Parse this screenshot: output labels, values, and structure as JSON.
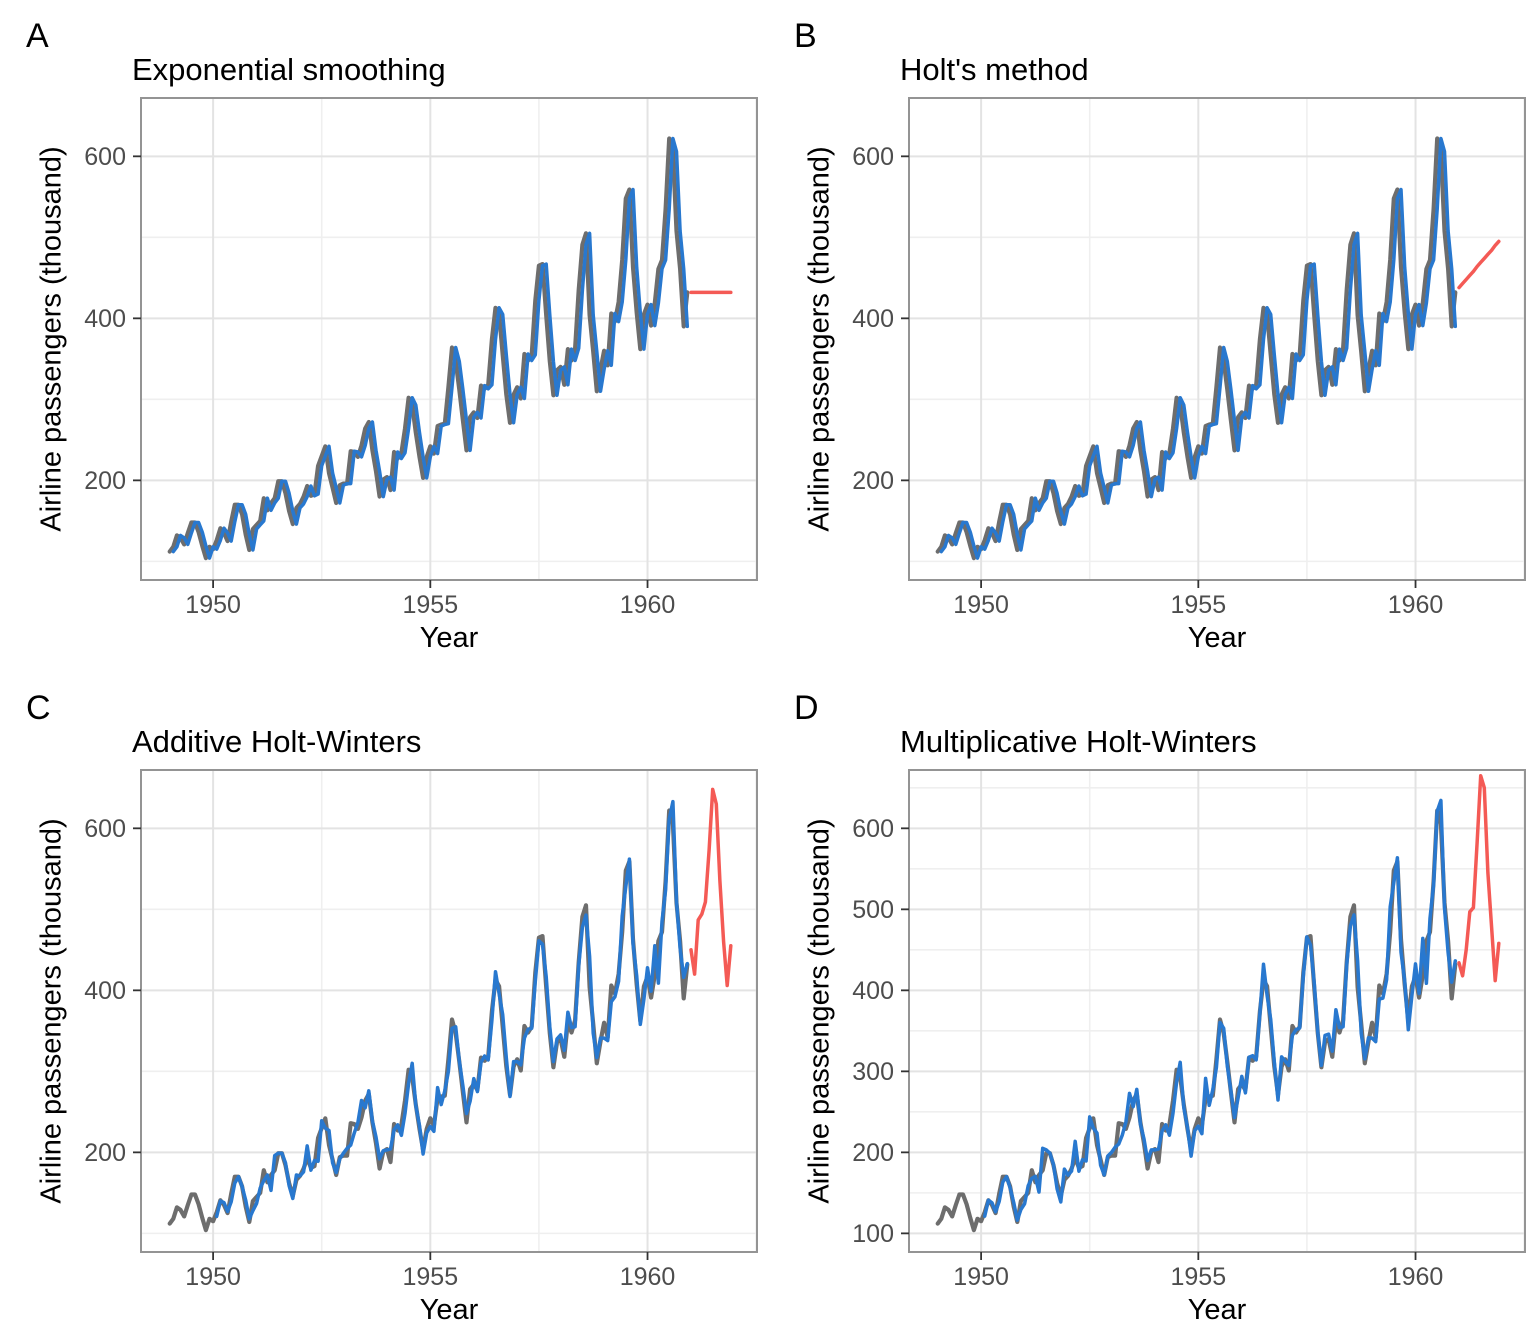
{
  "colors": {
    "observed_line": "#6d6d6d",
    "fitted_line": "#2878cf",
    "forecast_line": "#f45a55",
    "grid_major": "#e3e3e3",
    "grid_minor": "#efefef",
    "panel_border": "#949494",
    "tick_mark": "#333333",
    "tick_label": "#4d4d4d"
  },
  "observed": {
    "name": "Airline passengers, monthly",
    "start_year": 1949,
    "values": [
      112,
      118,
      132,
      129,
      121,
      135,
      148,
      148,
      136,
      119,
      104,
      118,
      115,
      126,
      141,
      135,
      125,
      149,
      170,
      170,
      158,
      133,
      114,
      140,
      145,
      150,
      178,
      163,
      172,
      178,
      199,
      199,
      184,
      162,
      146,
      166,
      171,
      180,
      193,
      181,
      183,
      218,
      230,
      242,
      209,
      191,
      172,
      194,
      196,
      196,
      236,
      235,
      229,
      243,
      264,
      272,
      237,
      211,
      180,
      201,
      204,
      188,
      235,
      227,
      234,
      264,
      302,
      293,
      259,
      229,
      203,
      229,
      242,
      233,
      267,
      269,
      270,
      315,
      364,
      347,
      312,
      274,
      237,
      278,
      284,
      277,
      317,
      313,
      318,
      374,
      413,
      405,
      355,
      306,
      271,
      306,
      315,
      301,
      356,
      348,
      355,
      422,
      465,
      467,
      404,
      347,
      305,
      336,
      340,
      318,
      362,
      348,
      363,
      435,
      491,
      505,
      404,
      359,
      310,
      337,
      360,
      342,
      406,
      396,
      420,
      472,
      548,
      559,
      463,
      407,
      362,
      405,
      417,
      391,
      419,
      461,
      472,
      535,
      622,
      606,
      508,
      461,
      390,
      432
    ]
  },
  "chart_data": [
    {
      "type": "line",
      "panel_label": "A",
      "title": "Exponential smoothing",
      "xlabel": "Year",
      "ylabel": "Airline passengers (thousand)",
      "x_ticks": [
        1950,
        1955,
        1960
      ],
      "x_minor_ticks": [
        1952.5,
        1957.5,
        1962.5
      ],
      "y_ticks": [
        200,
        400,
        600
      ],
      "y_minor_ticks": [
        100,
        300,
        500
      ],
      "xlim": [
        1948.34,
        1962.52
      ],
      "ylim": [
        77,
        672
      ],
      "grid": true,
      "legend": "none",
      "fitted_rule": "lag1",
      "forecast": {
        "start": 1961.0,
        "step_months": 1,
        "values": [
          432,
          432,
          432,
          432,
          432,
          432,
          432,
          432,
          432,
          432,
          432,
          432
        ]
      }
    },
    {
      "type": "line",
      "panel_label": "B",
      "title": "Holt's method",
      "xlabel": "Year",
      "ylabel": "Airline passengers (thousand)",
      "x_ticks": [
        1950,
        1955,
        1960
      ],
      "x_minor_ticks": [
        1952.5,
        1957.5,
        1962.5
      ],
      "y_ticks": [
        200,
        400,
        600
      ],
      "y_minor_ticks": [
        100,
        300,
        500
      ],
      "xlim": [
        1948.34,
        1962.52
      ],
      "ylim": [
        77,
        672
      ],
      "grid": true,
      "legend": "none",
      "fitted_rule": "lag1",
      "forecast": {
        "start": 1961.0,
        "step_months": 1,
        "values": [
          438,
          443,
          448,
          453,
          458,
          464,
          469,
          474,
          479,
          484,
          490,
          495
        ]
      }
    },
    {
      "type": "line",
      "panel_label": "C",
      "title": "Additive Holt-Winters",
      "xlabel": "Year",
      "ylabel": "Airline passengers (thousand)",
      "x_ticks": [
        1950,
        1955,
        1960
      ],
      "x_minor_ticks": [
        1952.5,
        1957.5,
        1962.5
      ],
      "y_ticks": [
        200,
        400,
        600
      ],
      "y_minor_ticks": [
        100,
        300,
        500
      ],
      "xlim": [
        1948.34,
        1962.52
      ],
      "ylim": [
        77,
        672
      ],
      "grid": true,
      "legend": "none",
      "fitted_rule": "seasonal_additive",
      "forecast": {
        "start": 1961.0,
        "step_months": 1,
        "values": [
          450,
          420,
          487,
          494,
          509,
          573,
          648,
          630,
          535,
          460,
          406,
          455
        ]
      }
    },
    {
      "type": "line",
      "panel_label": "D",
      "title": "Multiplicative Holt-Winters",
      "xlabel": "Year",
      "ylabel": "Airline passengers (thousand)",
      "x_ticks": [
        1950,
        1955,
        1960
      ],
      "x_minor_ticks": [
        1952.5,
        1957.5,
        1962.5
      ],
      "y_ticks": [
        100,
        200,
        300,
        400,
        500,
        600
      ],
      "y_minor_ticks": [
        150,
        250,
        350,
        450,
        550,
        650
      ],
      "xlim": [
        1948.34,
        1962.52
      ],
      "ylim": [
        77,
        672
      ],
      "grid": true,
      "legend": "none",
      "fitted_rule": "seasonal_multiplicative",
      "forecast": {
        "start": 1961.0,
        "step_months": 1,
        "values": [
          434,
          418,
          450,
          497,
          502,
          582,
          665,
          650,
          545,
          478,
          412,
          458
        ]
      }
    }
  ]
}
